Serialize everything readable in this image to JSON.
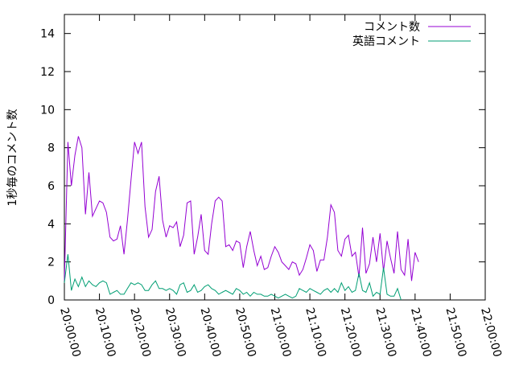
{
  "chart_data": {
    "type": "line",
    "title": "",
    "xlabel": "",
    "ylabel": "1秒毎のコメント数",
    "xlim": [
      "20:00:00",
      "22:00:00"
    ],
    "ylim": [
      0,
      15
    ],
    "x_ticks": [
      "20:00:00",
      "20:10:00",
      "20:20:00",
      "20:30:00",
      "20:40:00",
      "20:50:00",
      "21:00:00",
      "21:10:00",
      "21:20:00",
      "21:30:00",
      "21:40:00",
      "21:50:00",
      "22:00:00"
    ],
    "y_ticks": [
      "0",
      "2",
      "4",
      "6",
      "8",
      "10",
      "12",
      "14"
    ],
    "grid": false,
    "legend_position": "top-right",
    "series": [
      {
        "name": "コメント数",
        "color": "#9400d3",
        "points": [
          [
            "20:00:00",
            1.0
          ],
          [
            "20:01:00",
            8.3
          ],
          [
            "20:02:00",
            6.0
          ],
          [
            "20:03:00",
            7.6
          ],
          [
            "20:04:00",
            8.6
          ],
          [
            "20:05:00",
            8.0
          ],
          [
            "20:06:00",
            4.5
          ],
          [
            "20:07:00",
            6.7
          ],
          [
            "20:08:00",
            4.4
          ],
          [
            "20:09:00",
            4.8
          ],
          [
            "20:10:00",
            5.2
          ],
          [
            "20:11:00",
            5.1
          ],
          [
            "20:12:00",
            4.6
          ],
          [
            "20:13:00",
            3.3
          ],
          [
            "20:14:00",
            3.1
          ],
          [
            "20:15:00",
            3.2
          ],
          [
            "20:16:00",
            3.9
          ],
          [
            "20:17:00",
            2.4
          ],
          [
            "20:18:00",
            4.2
          ],
          [
            "20:19:00",
            6.3
          ],
          [
            "20:20:00",
            8.3
          ],
          [
            "20:21:00",
            7.7
          ],
          [
            "20:22:00",
            8.3
          ],
          [
            "20:23:00",
            4.9
          ],
          [
            "20:24:00",
            3.3
          ],
          [
            "20:25:00",
            3.7
          ],
          [
            "20:26:00",
            5.7
          ],
          [
            "20:27:00",
            6.5
          ],
          [
            "20:28:00",
            4.2
          ],
          [
            "20:29:00",
            3.3
          ],
          [
            "20:30:00",
            3.9
          ],
          [
            "20:31:00",
            3.8
          ],
          [
            "20:32:00",
            4.1
          ],
          [
            "20:33:00",
            2.8
          ],
          [
            "20:34:00",
            3.4
          ],
          [
            "20:35:00",
            5.1
          ],
          [
            "20:36:00",
            5.2
          ],
          [
            "20:37:00",
            2.4
          ],
          [
            "20:38:00",
            3.3
          ],
          [
            "20:39:00",
            4.5
          ],
          [
            "20:40:00",
            2.6
          ],
          [
            "20:41:00",
            2.4
          ],
          [
            "20:42:00",
            4.0
          ],
          [
            "20:43:00",
            5.2
          ],
          [
            "20:44:00",
            5.4
          ],
          [
            "20:45:00",
            5.2
          ],
          [
            "20:46:00",
            2.8
          ],
          [
            "20:47:00",
            2.9
          ],
          [
            "20:48:00",
            2.6
          ],
          [
            "20:49:00",
            3.1
          ],
          [
            "20:50:00",
            3.0
          ],
          [
            "20:51:00",
            1.7
          ],
          [
            "20:52:00",
            2.8
          ],
          [
            "20:53:00",
            3.6
          ],
          [
            "20:54:00",
            2.6
          ],
          [
            "20:55:00",
            1.8
          ],
          [
            "20:56:00",
            2.3
          ],
          [
            "20:57:00",
            1.6
          ],
          [
            "20:58:00",
            1.7
          ],
          [
            "20:59:00",
            2.3
          ],
          [
            "21:00:00",
            2.8
          ],
          [
            "21:01:00",
            2.5
          ],
          [
            "21:02:00",
            2.0
          ],
          [
            "21:03:00",
            1.8
          ],
          [
            "21:04:00",
            1.6
          ],
          [
            "21:05:00",
            2.0
          ],
          [
            "21:06:00",
            1.9
          ],
          [
            "21:07:00",
            1.3
          ],
          [
            "21:08:00",
            1.6
          ],
          [
            "21:09:00",
            2.2
          ],
          [
            "21:10:00",
            2.9
          ],
          [
            "21:11:00",
            2.6
          ],
          [
            "21:12:00",
            1.5
          ],
          [
            "21:13:00",
            2.1
          ],
          [
            "21:14:00",
            2.1
          ],
          [
            "21:15:00",
            3.3
          ],
          [
            "21:16:00",
            5.0
          ],
          [
            "21:17:00",
            4.6
          ],
          [
            "21:18:00",
            2.6
          ],
          [
            "21:19:00",
            2.3
          ],
          [
            "21:20:00",
            3.2
          ],
          [
            "21:21:00",
            3.4
          ],
          [
            "21:22:00",
            2.3
          ],
          [
            "21:23:00",
            2.5
          ],
          [
            "21:24:00",
            1.2
          ],
          [
            "21:25:00",
            3.8
          ],
          [
            "21:26:00",
            1.4
          ],
          [
            "21:27:00",
            1.9
          ],
          [
            "21:28:00",
            3.3
          ],
          [
            "21:29:00",
            2.0
          ],
          [
            "21:30:00",
            3.5
          ],
          [
            "21:31:00",
            1.5
          ],
          [
            "21:32:00",
            3.1
          ],
          [
            "21:33:00",
            2.2
          ],
          [
            "21:34:00",
            1.4
          ],
          [
            "21:35:00",
            3.6
          ],
          [
            "21:36:00",
            1.6
          ],
          [
            "21:37:00",
            1.3
          ],
          [
            "21:38:00",
            3.2
          ],
          [
            "21:39:00",
            1.0
          ],
          [
            "21:40:00",
            2.5
          ],
          [
            "21:41:00",
            2.0
          ]
        ]
      },
      {
        "name": "英語コメント",
        "color": "#009e73",
        "points": [
          [
            "20:00:00",
            0.9
          ],
          [
            "20:01:00",
            2.4
          ],
          [
            "20:02:00",
            0.5
          ],
          [
            "20:03:00",
            1.1
          ],
          [
            "20:04:00",
            0.7
          ],
          [
            "20:05:00",
            1.2
          ],
          [
            "20:06:00",
            0.7
          ],
          [
            "20:07:00",
            1.0
          ],
          [
            "20:08:00",
            0.8
          ],
          [
            "20:09:00",
            0.7
          ],
          [
            "20:10:00",
            0.9
          ],
          [
            "20:11:00",
            1.0
          ],
          [
            "20:12:00",
            0.9
          ],
          [
            "20:13:00",
            0.3
          ],
          [
            "20:14:00",
            0.4
          ],
          [
            "20:15:00",
            0.5
          ],
          [
            "20:16:00",
            0.3
          ],
          [
            "20:17:00",
            0.3
          ],
          [
            "20:18:00",
            0.6
          ],
          [
            "20:19:00",
            0.9
          ],
          [
            "20:20:00",
            0.8
          ],
          [
            "20:21:00",
            0.9
          ],
          [
            "20:22:00",
            0.8
          ],
          [
            "20:23:00",
            0.5
          ],
          [
            "20:24:00",
            0.5
          ],
          [
            "20:25:00",
            0.8
          ],
          [
            "20:26:00",
            1.0
          ],
          [
            "20:27:00",
            0.6
          ],
          [
            "20:28:00",
            0.6
          ],
          [
            "20:29:00",
            0.5
          ],
          [
            "20:30:00",
            0.6
          ],
          [
            "20:31:00",
            0.5
          ],
          [
            "20:32:00",
            0.3
          ],
          [
            "20:33:00",
            0.8
          ],
          [
            "20:34:00",
            0.9
          ],
          [
            "20:35:00",
            0.4
          ],
          [
            "20:36:00",
            0.5
          ],
          [
            "20:37:00",
            0.8
          ],
          [
            "20:38:00",
            0.4
          ],
          [
            "20:39:00",
            0.5
          ],
          [
            "20:40:00",
            0.7
          ],
          [
            "20:41:00",
            0.8
          ],
          [
            "20:42:00",
            0.6
          ],
          [
            "20:43:00",
            0.5
          ],
          [
            "20:44:00",
            0.3
          ],
          [
            "20:45:00",
            0.4
          ],
          [
            "20:46:00",
            0.5
          ],
          [
            "20:47:00",
            0.4
          ],
          [
            "20:48:00",
            0.3
          ],
          [
            "20:49:00",
            0.6
          ],
          [
            "20:50:00",
            0.5
          ],
          [
            "20:51:00",
            0.3
          ],
          [
            "20:52:00",
            0.4
          ],
          [
            "20:53:00",
            0.2
          ],
          [
            "20:54:00",
            0.4
          ],
          [
            "20:55:00",
            0.3
          ],
          [
            "20:56:00",
            0.3
          ],
          [
            "20:57:00",
            0.2
          ],
          [
            "20:58:00",
            0.2
          ],
          [
            "20:59:00",
            0.3
          ],
          [
            "21:00:00",
            0.2
          ],
          [
            "21:01:00",
            0.1
          ],
          [
            "21:02:00",
            0.2
          ],
          [
            "21:03:00",
            0.3
          ],
          [
            "21:04:00",
            0.2
          ],
          [
            "21:05:00",
            0.1
          ],
          [
            "21:06:00",
            0.2
          ],
          [
            "21:07:00",
            0.6
          ],
          [
            "21:08:00",
            0.5
          ],
          [
            "21:09:00",
            0.4
          ],
          [
            "21:10:00",
            0.6
          ],
          [
            "21:11:00",
            0.5
          ],
          [
            "21:12:00",
            0.4
          ],
          [
            "21:13:00",
            0.3
          ],
          [
            "21:14:00",
            0.5
          ],
          [
            "21:15:00",
            0.6
          ],
          [
            "21:16:00",
            0.4
          ],
          [
            "21:17:00",
            0.6
          ],
          [
            "21:18:00",
            0.4
          ],
          [
            "21:19:00",
            0.9
          ],
          [
            "21:20:00",
            0.5
          ],
          [
            "21:21:00",
            0.7
          ],
          [
            "21:22:00",
            0.4
          ],
          [
            "21:23:00",
            0.5
          ],
          [
            "21:24:00",
            1.4
          ],
          [
            "21:25:00",
            0.5
          ],
          [
            "21:26:00",
            0.4
          ],
          [
            "21:27:00",
            0.9
          ],
          [
            "21:28:00",
            0.2
          ],
          [
            "21:29:00",
            0.4
          ],
          [
            "21:30:00",
            0.3
          ],
          [
            "21:31:00",
            1.7
          ],
          [
            "21:32:00",
            0.3
          ],
          [
            "21:33:00",
            0.2
          ],
          [
            "21:34:00",
            0.2
          ],
          [
            "21:35:00",
            0.6
          ],
          [
            "21:36:00",
            0.0
          ]
        ]
      }
    ]
  }
}
